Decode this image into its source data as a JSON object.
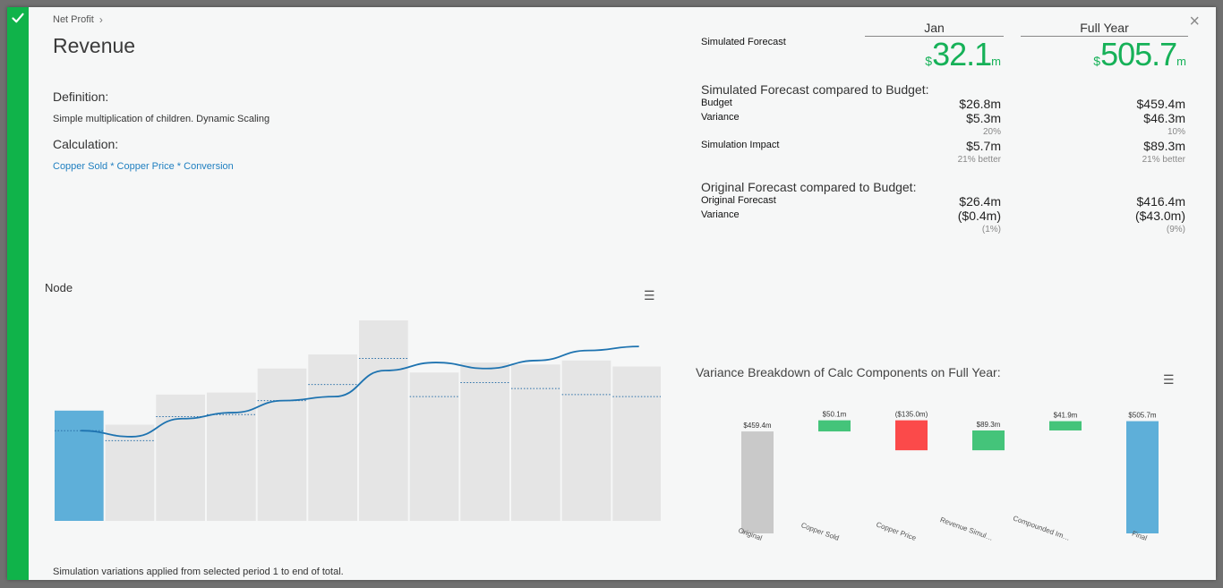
{
  "header": {
    "breadcrumb": "Net Profit",
    "title": "Revenue",
    "close_glyph": "×"
  },
  "definition": {
    "heading": "Definition:",
    "text": "Simple multiplication of children. Dynamic Scaling"
  },
  "calculation": {
    "heading": "Calculation:",
    "formula": "Copper Sold * Copper Price * Conversion"
  },
  "node_chart": {
    "title": "Node",
    "menu_glyph": "☰",
    "footer_note": "Simulation variations applied from selected period 1 to end of total.",
    "chart_data": {
      "type": "bar",
      "bars": [
        0.55,
        0.48,
        0.63,
        0.64,
        0.76,
        0.83,
        1.0,
        0.74,
        0.79,
        0.78,
        0.8,
        0.77
      ],
      "highlight_index": 0,
      "dotted_markers": [
        0.45,
        0.4,
        0.52,
        0.53,
        0.6,
        0.68,
        0.81,
        0.62,
        0.69,
        0.66,
        0.63,
        0.62
      ],
      "line": [
        0.45,
        0.42,
        0.51,
        0.54,
        0.6,
        0.62,
        0.75,
        0.79,
        0.76,
        0.8,
        0.85,
        0.87
      ],
      "colors": {
        "highlight": "#5eafd9",
        "bar": "#e5e5e5",
        "line": "#1e73b0",
        "dotted": "#2a6fa8"
      }
    }
  },
  "summary": {
    "simulated_forecast_label": "Simulated Forecast",
    "columns": [
      {
        "header": "Jan",
        "currency": "$",
        "value": "32.1",
        "unit": "m"
      },
      {
        "header": "Full Year",
        "currency": "$",
        "value": "505.7",
        "unit": "m"
      }
    ],
    "vs_budget": {
      "heading": "Simulated Forecast compared to Budget:",
      "budget_label": "Budget",
      "budget": [
        "$26.8m",
        "$459.4m"
      ],
      "variance_label": "Variance",
      "variance": [
        "$5.3m",
        "$46.3m"
      ],
      "variance_pct": [
        "20%",
        "10%"
      ],
      "impact_label": "Simulation Impact",
      "impact": [
        "$5.7m",
        "$89.3m"
      ],
      "impact_note": [
        "21% better",
        "21% better"
      ]
    },
    "original": {
      "heading": "Original Forecast compared to Budget:",
      "forecast_label": "Original Forecast",
      "forecast": [
        "$26.4m",
        "$416.4m"
      ],
      "variance_label": "Variance",
      "variance": [
        "($0.4m)",
        "($43.0m)"
      ],
      "variance_pct": [
        "(1%)",
        "(9%)"
      ]
    }
  },
  "variance_breakdown": {
    "title": "Variance Breakdown of Calc Components on Full Year:",
    "menu_glyph": "☰",
    "chart_data": {
      "type": "bar",
      "subtype": "waterfall",
      "categories": [
        "Original",
        "Copper Sold",
        "Copper Price",
        "Revenue Simulation",
        "Compounded Impact",
        "Final"
      ],
      "tick_labels": [
        "Original",
        "Copper Sold",
        "Copper Price",
        "Revenue Simul…",
        "Compounded Im…",
        "Final"
      ],
      "values": [
        459.4,
        50.1,
        -135.0,
        89.3,
        41.9,
        505.7
      ],
      "data_labels": [
        "$459.4m",
        "$50.1m",
        "($135.0m)",
        "$89.3m",
        "$41.9m",
        "$505.7m"
      ],
      "kinds": [
        "total",
        "delta",
        "delta",
        "delta",
        "delta",
        "total"
      ],
      "colors": {
        "original": "#c9c9c9",
        "positive": "#44c47a",
        "negative": "#fb4a4a",
        "final": "#5eafd9"
      }
    }
  }
}
